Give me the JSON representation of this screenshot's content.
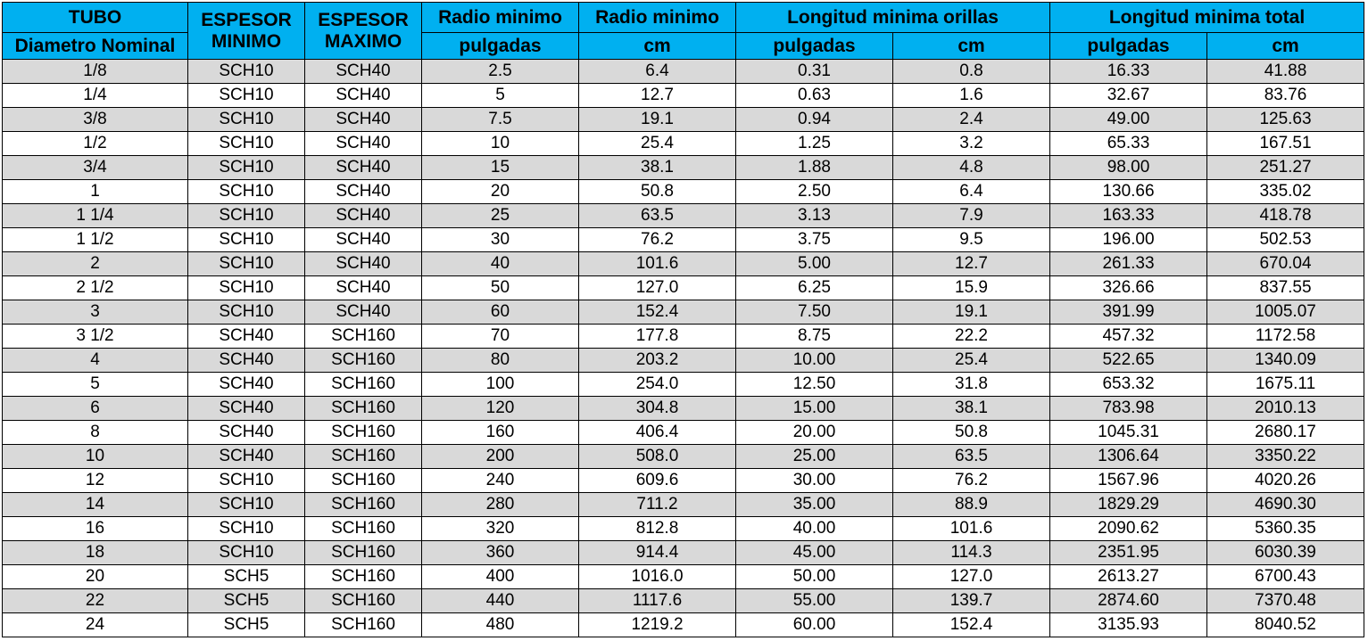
{
  "header": {
    "tubo": "TUBO",
    "diametro": "Diametro Nominal",
    "esp_min_1": "ESPESOR",
    "esp_min_2": "MINIMO",
    "esp_max_1": "ESPESOR",
    "esp_max_2": "MAXIMO",
    "radio_pulg_1": "Radio minimo",
    "radio_pulg_2": "pulgadas",
    "radio_cm_1": "Radio minimo",
    "radio_cm_2": "cm",
    "long_orillas": "Longitud minima orillas",
    "long_orillas_pulg": "pulgadas",
    "long_orillas_cm": "cm",
    "long_total": "Longitud minima total",
    "long_total_pulg": "pulgadas",
    "long_total_cm": "cm"
  },
  "colors": {
    "header_bg": "#00B0F0",
    "stripe": "#D9D9D9"
  },
  "rows": [
    [
      "1/8",
      "SCH10",
      "SCH40",
      "2.5",
      "6.4",
      "0.31",
      "0.8",
      "16.33",
      "41.88"
    ],
    [
      "1/4",
      "SCH10",
      "SCH40",
      "5",
      "12.7",
      "0.63",
      "1.6",
      "32.67",
      "83.76"
    ],
    [
      "3/8",
      "SCH10",
      "SCH40",
      "7.5",
      "19.1",
      "0.94",
      "2.4",
      "49.00",
      "125.63"
    ],
    [
      "1/2",
      "SCH10",
      "SCH40",
      "10",
      "25.4",
      "1.25",
      "3.2",
      "65.33",
      "167.51"
    ],
    [
      "3/4",
      "SCH10",
      "SCH40",
      "15",
      "38.1",
      "1.88",
      "4.8",
      "98.00",
      "251.27"
    ],
    [
      "1",
      "SCH10",
      "SCH40",
      "20",
      "50.8",
      "2.50",
      "6.4",
      "130.66",
      "335.02"
    ],
    [
      "1 1/4",
      "SCH10",
      "SCH40",
      "25",
      "63.5",
      "3.13",
      "7.9",
      "163.33",
      "418.78"
    ],
    [
      "1 1/2",
      "SCH10",
      "SCH40",
      "30",
      "76.2",
      "3.75",
      "9.5",
      "196.00",
      "502.53"
    ],
    [
      "2",
      "SCH10",
      "SCH40",
      "40",
      "101.6",
      "5.00",
      "12.7",
      "261.33",
      "670.04"
    ],
    [
      "2 1/2",
      "SCH10",
      "SCH40",
      "50",
      "127.0",
      "6.25",
      "15.9",
      "326.66",
      "837.55"
    ],
    [
      "3",
      "SCH10",
      "SCH40",
      "60",
      "152.4",
      "7.50",
      "19.1",
      "391.99",
      "1005.07"
    ],
    [
      "3 1/2",
      "SCH40",
      "SCH160",
      "70",
      "177.8",
      "8.75",
      "22.2",
      "457.32",
      "1172.58"
    ],
    [
      "4",
      "SCH40",
      "SCH160",
      "80",
      "203.2",
      "10.00",
      "25.4",
      "522.65",
      "1340.09"
    ],
    [
      "5",
      "SCH40",
      "SCH160",
      "100",
      "254.0",
      "12.50",
      "31.8",
      "653.32",
      "1675.11"
    ],
    [
      "6",
      "SCH40",
      "SCH160",
      "120",
      "304.8",
      "15.00",
      "38.1",
      "783.98",
      "2010.13"
    ],
    [
      "8",
      "SCH40",
      "SCH160",
      "160",
      "406.4",
      "20.00",
      "50.8",
      "1045.31",
      "2680.17"
    ],
    [
      "10",
      "SCH40",
      "SCH160",
      "200",
      "508.0",
      "25.00",
      "63.5",
      "1306.64",
      "3350.22"
    ],
    [
      "12",
      "SCH10",
      "SCH160",
      "240",
      "609.6",
      "30.00",
      "76.2",
      "1567.96",
      "4020.26"
    ],
    [
      "14",
      "SCH10",
      "SCH160",
      "280",
      "711.2",
      "35.00",
      "88.9",
      "1829.29",
      "4690.30"
    ],
    [
      "16",
      "SCH10",
      "SCH160",
      "320",
      "812.8",
      "40.00",
      "101.6",
      "2090.62",
      "5360.35"
    ],
    [
      "18",
      "SCH10",
      "SCH160",
      "360",
      "914.4",
      "45.00",
      "114.3",
      "2351.95",
      "6030.39"
    ],
    [
      "20",
      "SCH5",
      "SCH160",
      "400",
      "1016.0",
      "50.00",
      "127.0",
      "2613.27",
      "6700.43"
    ],
    [
      "22",
      "SCH5",
      "SCH160",
      "440",
      "1117.6",
      "55.00",
      "139.7",
      "2874.60",
      "7370.48"
    ],
    [
      "24",
      "SCH5",
      "SCH160",
      "480",
      "1219.2",
      "60.00",
      "152.4",
      "3135.93",
      "8040.52"
    ]
  ]
}
